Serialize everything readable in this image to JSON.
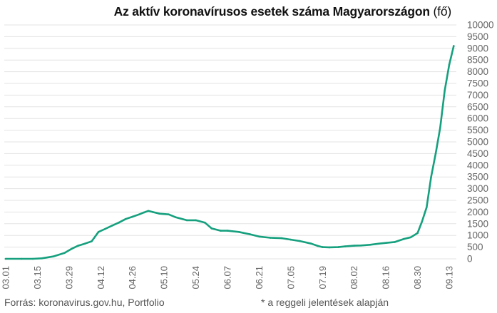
{
  "chart_data": {
    "type": "line",
    "title": "Az aktív koronavírusos esetek száma Magyarországon",
    "title_unit": "(fő)",
    "xlabel": "",
    "ylabel": "",
    "ylim": [
      0,
      10000
    ],
    "y_ticks": [
      0,
      500,
      1000,
      1500,
      2000,
      2500,
      3000,
      3500,
      4000,
      4500,
      5000,
      5500,
      6000,
      6500,
      7000,
      7500,
      8000,
      8500,
      9000,
      9500,
      10000
    ],
    "y_axis_side": "right",
    "x_tick_labels": [
      "03.01",
      "03.15",
      "03.29",
      "04.12",
      "04.26",
      "05.10",
      "05.24",
      "06.07",
      "06.21",
      "07.05",
      "07.19",
      "08.02",
      "08.16",
      "08.30",
      "09.13"
    ],
    "x_tick_labels_rotated": true,
    "grid": "horizontal",
    "legend": "none",
    "line_color": "#16a07e",
    "series": [
      {
        "x": [
          "03.01",
          "03.08",
          "03.13",
          "03.17",
          "03.22",
          "03.27",
          "03.30",
          "04.02",
          "04.05",
          "04.08",
          "04.11",
          "04.14",
          "04.17",
          "04.20",
          "04.23",
          "04.26",
          "04.29",
          "05.01",
          "05.03",
          "05.05",
          "05.08",
          "05.12",
          "05.15",
          "05.20",
          "05.24",
          "05.28",
          "05.31",
          "06.04",
          "06.07",
          "06.12",
          "06.17",
          "06.21",
          "06.26",
          "07.01",
          "07.05",
          "07.09",
          "07.14",
          "07.17",
          "07.19",
          "07.22",
          "07.26",
          "07.29",
          "08.02",
          "08.05",
          "08.09",
          "08.13",
          "08.16",
          "08.20",
          "08.24",
          "08.27",
          "08.30",
          "09.01",
          "09.03",
          "09.05",
          "09.07",
          "09.09",
          "09.11",
          "09.13",
          "09.15"
        ],
        "values": [
          0,
          0,
          0,
          20,
          100,
          250,
          420,
          560,
          650,
          750,
          1150,
          1280,
          1420,
          1550,
          1700,
          1800,
          1900,
          1980,
          2050,
          2000,
          1930,
          1900,
          1780,
          1650,
          1650,
          1550,
          1300,
          1200,
          1200,
          1150,
          1050,
          950,
          900,
          880,
          820,
          760,
          650,
          550,
          500,
          490,
          500,
          530,
          560,
          570,
          600,
          650,
          680,
          720,
          850,
          920,
          1100,
          1600,
          2200,
          3500,
          4500,
          5600,
          7200,
          8300,
          9100
        ]
      }
    ]
  },
  "footer": {
    "source": "Forrás: koronavirus.gov.hu, Portfolio",
    "footnote": "* a reggeli jelentések alapján"
  }
}
